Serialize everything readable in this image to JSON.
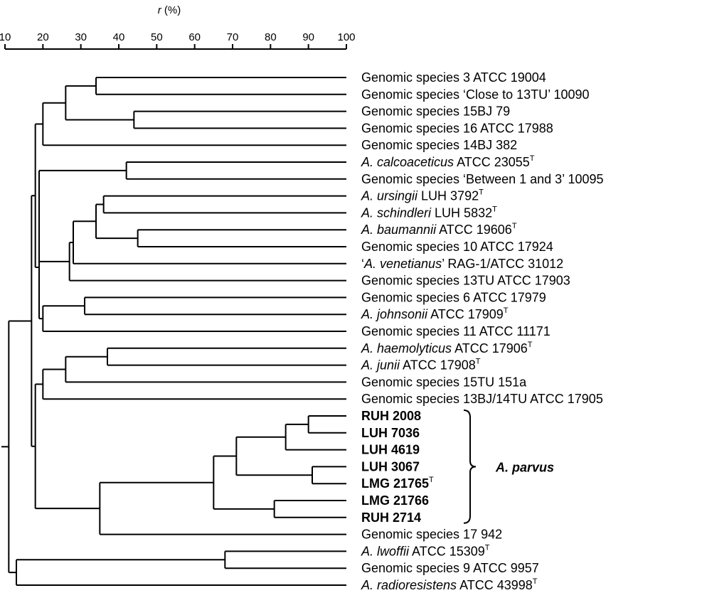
{
  "axis": {
    "title_var": "r",
    "title_unit": " (%)",
    "ticks": [
      10,
      20,
      30,
      40,
      50,
      60,
      70,
      80,
      90,
      100
    ],
    "range": [
      10,
      100
    ]
  },
  "leaves": [
    {
      "parts": [
        {
          "t": "Genomic species 3   ATCC 19004"
        }
      ]
    },
    {
      "parts": [
        {
          "t": "Genomic species ‘Close to 13TU’   10090"
        }
      ]
    },
    {
      "parts": [
        {
          "t": "Genomic species 15BJ   79"
        }
      ]
    },
    {
      "parts": [
        {
          "t": "Genomic species 16   ATCC 17988"
        }
      ]
    },
    {
      "parts": [
        {
          "t": "Genomic species 14BJ   382"
        }
      ]
    },
    {
      "parts": [
        {
          "t": "A. calcoaceticus",
          "i": true
        },
        {
          "t": "   ATCC 23055"
        },
        {
          "t": "T",
          "s": true
        }
      ]
    },
    {
      "parts": [
        {
          "t": "Genomic species ‘Between 1 and 3’   10095"
        }
      ]
    },
    {
      "parts": [
        {
          "t": "A. ursingii",
          "i": true
        },
        {
          "t": "   LUH 3792"
        },
        {
          "t": "T",
          "s": true
        }
      ]
    },
    {
      "parts": [
        {
          "t": "A. schindleri",
          "i": true
        },
        {
          "t": "   LUH 5832"
        },
        {
          "t": "T",
          "s": true
        }
      ]
    },
    {
      "parts": [
        {
          "t": "A. baumannii",
          "i": true
        },
        {
          "t": "   ATCC 19606"
        },
        {
          "t": "T",
          "s": true
        }
      ]
    },
    {
      "parts": [
        {
          "t": "Genomic species 10   ATCC 17924"
        }
      ]
    },
    {
      "parts": [
        {
          "t": "‘"
        },
        {
          "t": "A. venetianus",
          "i": true
        },
        {
          "t": "’   RAG-1/ATCC 31012"
        }
      ]
    },
    {
      "parts": [
        {
          "t": "Genomic species 13TU   ATCC 17903"
        }
      ]
    },
    {
      "parts": [
        {
          "t": "Genomic species 6   ATCC 17979"
        }
      ]
    },
    {
      "parts": [
        {
          "t": "A. johnsonii",
          "i": true
        },
        {
          "t": "   ATCC 17909"
        },
        {
          "t": "T",
          "s": true
        }
      ]
    },
    {
      "parts": [
        {
          "t": "Genomic species 11   ATCC 11171"
        }
      ]
    },
    {
      "parts": [
        {
          "t": "A. haemolyticus",
          "i": true
        },
        {
          "t": "   ATCC 17906"
        },
        {
          "t": "T",
          "s": true
        }
      ]
    },
    {
      "parts": [
        {
          "t": "A. junii",
          "i": true
        },
        {
          "t": "   ATCC 17908"
        },
        {
          "t": "T",
          "s": true
        }
      ]
    },
    {
      "parts": [
        {
          "t": "Genomic species 15TU   151a"
        }
      ]
    },
    {
      "parts": [
        {
          "t": "Genomic species 13BJ/14TU   ATCC 17905"
        }
      ]
    },
    {
      "parts": [
        {
          "t": "RUH 2008",
          "b": true
        }
      ]
    },
    {
      "parts": [
        {
          "t": "LUH 7036",
          "b": true
        }
      ]
    },
    {
      "parts": [
        {
          "t": "LUH 4619",
          "b": true
        }
      ]
    },
    {
      "parts": [
        {
          "t": "LUH 3067",
          "b": true
        }
      ]
    },
    {
      "parts": [
        {
          "t": "LMG 21765",
          "b": true
        },
        {
          "t": "T",
          "s": true
        }
      ]
    },
    {
      "parts": [
        {
          "t": "LMG 21766",
          "b": true
        }
      ]
    },
    {
      "parts": [
        {
          "t": "RUH 2714",
          "b": true
        }
      ]
    },
    {
      "parts": [
        {
          "t": "Genomic species 17   942"
        }
      ]
    },
    {
      "parts": [
        {
          "t": "A. lwoffii",
          "i": true
        },
        {
          "t": "   ATCC 15309"
        },
        {
          "t": "T",
          "s": true
        }
      ]
    },
    {
      "parts": [
        {
          "t": "Genomic species 9   ATCC 9957"
        }
      ]
    },
    {
      "parts": [
        {
          "t": "A. radioresistens",
          "i": true
        },
        {
          "t": "   ATCC 43998"
        },
        {
          "t": "T",
          "s": true
        }
      ]
    }
  ],
  "tree": {
    "r": 11,
    "c": [
      {
        "r": 17,
        "c": [
          {
            "r": 18,
            "c": [
              {
                "r": 20,
                "c": [
                  {
                    "r": 26,
                    "c": [
                      {
                        "r": 34,
                        "c": [
                          {
                            "leaf": 0
                          },
                          {
                            "leaf": 1
                          }
                        ]
                      },
                      {
                        "r": 44,
                        "c": [
                          {
                            "leaf": 2
                          },
                          {
                            "leaf": 3
                          }
                        ]
                      }
                    ]
                  },
                  {
                    "leaf": 4
                  }
                ]
              },
              {
                "r": 19,
                "c": [
                  {
                    "r": 19,
                    "c": [
                      {
                        "r": 42,
                        "c": [
                          {
                            "leaf": 5
                          },
                          {
                            "leaf": 6
                          }
                        ]
                      },
                      {
                        "r": 27,
                        "c": [
                          {
                            "r": 28,
                            "c": [
                              {
                                "r": 34,
                                "c": [
                                  {
                                    "r": 36,
                                    "c": [
                                      {
                                        "leaf": 7
                                      },
                                      {
                                        "leaf": 8
                                      }
                                    ]
                                  },
                                  {
                                    "r": 45,
                                    "c": [
                                      {
                                        "leaf": 9
                                      },
                                      {
                                        "leaf": 10
                                      }
                                    ]
                                  }
                                ]
                              },
                              {
                                "leaf": 11
                              }
                            ]
                          },
                          {
                            "leaf": 12
                          }
                        ]
                      }
                    ]
                  },
                  {
                    "r": 20,
                    "c": [
                      {
                        "r": 31,
                        "c": [
                          {
                            "leaf": 13
                          },
                          {
                            "leaf": 14
                          }
                        ]
                      },
                      {
                        "leaf": 15
                      }
                    ]
                  }
                ]
              }
            ]
          },
          {
            "r": 18,
            "c": [
              {
                "r": 20,
                "c": [
                  {
                    "r": 26,
                    "c": [
                      {
                        "r": 37,
                        "c": [
                          {
                            "leaf": 16
                          },
                          {
                            "leaf": 17
                          }
                        ]
                      },
                      {
                        "leaf": 18
                      }
                    ]
                  },
                  {
                    "leaf": 19
                  }
                ]
              },
              {
                "r": 35,
                "c": [
                  {
                    "r": 65,
                    "c": [
                      {
                        "r": 71,
                        "c": [
                          {
                            "r": 84,
                            "c": [
                              {
                                "r": 90,
                                "c": [
                                  {
                                    "leaf": 20
                                  },
                                  {
                                    "leaf": 21
                                  }
                                ]
                              },
                              {
                                "leaf": 22
                              }
                            ]
                          },
                          {
                            "r": 91,
                            "c": [
                              {
                                "leaf": 23
                              },
                              {
                                "leaf": 24
                              }
                            ]
                          }
                        ]
                      },
                      {
                        "r": 81,
                        "c": [
                          {
                            "leaf": 25
                          },
                          {
                            "leaf": 26
                          }
                        ]
                      }
                    ]
                  },
                  {
                    "leaf": 27
                  }
                ]
              }
            ]
          }
        ]
      },
      {
        "r": 13,
        "c": [
          {
            "r": 68,
            "c": [
              {
                "leaf": 28
              },
              {
                "leaf": 29
              }
            ]
          },
          {
            "leaf": 30
          }
        ]
      }
    ]
  },
  "group": {
    "label": "A. parvus",
    "from_leaf": 20,
    "to_leaf": 26
  }
}
